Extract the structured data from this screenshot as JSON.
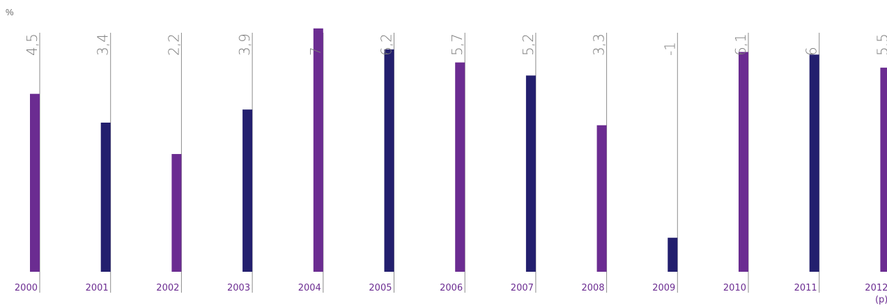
{
  "unit_label": "%",
  "colors": {
    "purple": "#6b2c91",
    "navy": "#231f6e",
    "guide": "#8a8a8a",
    "value_text": "#7a7a7a",
    "year_text": "#6b2c91"
  },
  "chart_data": {
    "type": "bar",
    "categories": [
      "2000",
      "2001",
      "2002",
      "2003",
      "2004",
      "2005",
      "2006",
      "2007",
      "2008",
      "2009",
      "2010",
      "2011",
      "2012"
    ],
    "category_sublabels": [
      "",
      "",
      "",
      "",
      "",
      "",
      "",
      "",
      "",
      "",
      "",
      "",
      "(p)"
    ],
    "values": [
      4.5,
      3.4,
      2.2,
      3.9,
      7,
      6.2,
      5.7,
      5.2,
      3.3,
      -1,
      6.1,
      6,
      5.5
    ],
    "value_labels": [
      "4,5",
      "3,4",
      "2,2",
      "3,9",
      "7",
      "6,2",
      "5,7",
      "5,2",
      "3,3",
      "-1",
      "6,1",
      "6",
      "5,5"
    ],
    "bar_colors": [
      "#6b2c91",
      "#231f6e",
      "#6b2c91",
      "#231f6e",
      "#6b2c91",
      "#231f6e",
      "#6b2c91",
      "#231f6e",
      "#6b2c91",
      "#231f6e",
      "#6b2c91",
      "#231f6e",
      "#6b2c91"
    ],
    "ylabel": "%",
    "ylim": [
      -2.3,
      8
    ],
    "grid": false,
    "legend": "none"
  }
}
